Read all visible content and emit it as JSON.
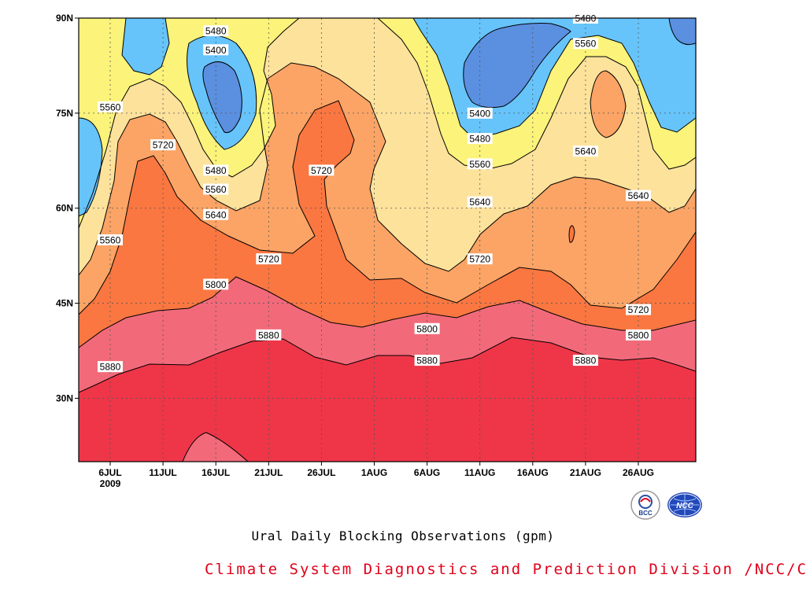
{
  "chart_data": {
    "type": "heatmap",
    "title": "Ural Daily Blocking Observations (gpm)",
    "x_ticks": [
      "6JUL",
      "11JUL",
      "16JUL",
      "21JUL",
      "26JUL",
      "1AUG",
      "6AUG",
      "11AUG",
      "16AUG",
      "21AUG",
      "26AUG"
    ],
    "x_year_label": "2009",
    "y_ticks": [
      "90N",
      "75N",
      "60N",
      "45N",
      "30N"
    ],
    "ylim": [
      20,
      90
    ],
    "contour_levels": [
      5400,
      5480,
      5560,
      5640,
      5720,
      5800,
      5880
    ],
    "contour_labels": [
      {
        "value": "5480",
        "day": "16JUL",
        "lat": 88
      },
      {
        "value": "5400",
        "day": "16JUL",
        "lat": 85
      },
      {
        "value": "5560",
        "day": "6JUL",
        "lat": 76
      },
      {
        "value": "5720",
        "day": "11JUL",
        "lat": 70
      },
      {
        "value": "5480",
        "day": "16JUL",
        "lat": 66
      },
      {
        "value": "5560",
        "day": "16JUL",
        "lat": 63
      },
      {
        "value": "5640",
        "day": "16JUL",
        "lat": 59
      },
      {
        "value": "5720",
        "day": "26JUL",
        "lat": 66
      },
      {
        "value": "5560",
        "day": "6JUL",
        "lat": 55
      },
      {
        "value": "5720",
        "day": "21JUL",
        "lat": 52
      },
      {
        "value": "5800",
        "day": "16JUL",
        "lat": 48
      },
      {
        "value": "5880",
        "day": "21JUL",
        "lat": 40
      },
      {
        "value": "5880",
        "day": "6JUL",
        "lat": 35
      },
      {
        "value": "5400",
        "day": "11AUG",
        "lat": 75
      },
      {
        "value": "5480",
        "day": "11AUG",
        "lat": 71
      },
      {
        "value": "5560",
        "day": "11AUG",
        "lat": 67
      },
      {
        "value": "5640",
        "day": "11AUG",
        "lat": 61
      },
      {
        "value": "5720",
        "day": "11AUG",
        "lat": 52
      },
      {
        "value": "5800",
        "day": "6AUG",
        "lat": 41
      },
      {
        "value": "5880",
        "day": "6AUG",
        "lat": 36
      },
      {
        "value": "5480",
        "day": "21AUG",
        "lat": 90
      },
      {
        "value": "5560",
        "day": "21AUG",
        "lat": 86
      },
      {
        "value": "5640",
        "day": "21AUG",
        "lat": 69
      },
      {
        "value": "5640",
        "day": "26AUG",
        "lat": 62
      },
      {
        "value": "5720",
        "day": "26AUG",
        "lat": 44
      },
      {
        "value": "5800",
        "day": "26AUG",
        "lat": 40
      },
      {
        "value": "5880",
        "day": "21AUG",
        "lat": 36
      }
    ],
    "grid": true
  },
  "colors": {
    "c5400": "#5b8fe0",
    "c5480": "#66c4fa",
    "c5560": "#fbf37a",
    "c5640": "#fde29c",
    "c5720": "#fba465",
    "c5800": "#fa7741",
    "c5880": "#f26a7a",
    "c5960": "#ee3648",
    "footer": "#e0001a"
  },
  "caption": "Ural Daily Blocking Observations (gpm)",
  "footer": "Climate System Diagnostics and Prediction Division /NCC/CMA",
  "logos": [
    {
      "name": "bcc-logo",
      "text": "BCC"
    },
    {
      "name": "ncc-logo",
      "text": "NCC"
    }
  ]
}
